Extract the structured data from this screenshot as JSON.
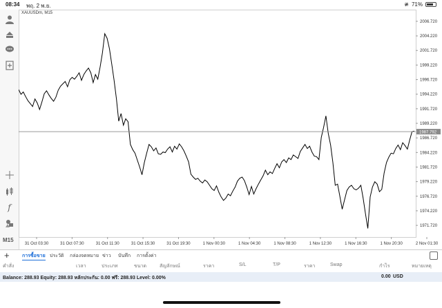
{
  "statusbar": {
    "time": "08:34",
    "date": "พฤ. 2 พ.ย.",
    "battery": "71%"
  },
  "sidebar": {
    "icons": [
      "user-icon",
      "trade-icon",
      "chat-icon",
      "new-order-icon",
      "crosshair-icon",
      "chart-type-icon",
      "indicator-icon",
      "objects-icon"
    ],
    "timeframe": "M15"
  },
  "chart": {
    "symbol": "XAUUSDm, M15",
    "current_price_label": "1987.792",
    "line_color": "#000000",
    "price_line_color": "#8a8a8a"
  },
  "chart_data": {
    "type": "line",
    "y_ticks": [
      "2006.720",
      "2004.220",
      "2001.720",
      "1999.220",
      "1996.720",
      "1994.220",
      "1991.720",
      "1989.220",
      "1986.720",
      "1984.220",
      "1981.720",
      "1979.220",
      "1976.720",
      "1974.220",
      "1971.720"
    ],
    "x_ticks": [
      "31 Oct 03:30",
      "31 Oct 07:30",
      "31 Oct 11:30",
      "31 Oct 15:30",
      "31 Oct 19:30",
      "1 Nov 00:30",
      "1 Nov 04:30",
      "1 Nov 08:30",
      "1 Nov 12:30",
      "1 Nov 16:30",
      "1 Nov 20:30",
      "2 Nov 01:30"
    ],
    "ylim": [
      1969.72,
      2008.72
    ],
    "current_price": 1987.792,
    "values": [
      1995.0,
      1994.2,
      1994.6,
      1993.8,
      1993.1,
      1992.6,
      1992.1,
      1993.4,
      1992.7,
      1991.6,
      1992.9,
      1994.3,
      1994.8,
      1994.1,
      1993.5,
      1993.0,
      1993.7,
      1994.9,
      1995.6,
      1996.0,
      1996.4,
      1995.5,
      1996.7,
      1997.1,
      1996.8,
      1997.3,
      1997.9,
      1996.6,
      1997.6,
      1998.2,
      1998.7,
      1997.9,
      1996.2,
      1997.6,
      1996.8,
      1998.9,
      2001.3,
      2004.6,
      2003.8,
      2002.0,
      1999.4,
      1996.6,
      1993.4,
      1989.6,
      1990.9,
      1988.9,
      1990.0,
      1989.5,
      1985.6,
      1984.7,
      1984.1,
      1982.9,
      1981.7,
      1980.4,
      1982.5,
      1984.1,
      1985.6,
      1985.2,
      1984.5,
      1985.0,
      1984.0,
      1983.9,
      1984.3,
      1984.2,
      1984.8,
      1985.2,
      1984.3,
      1985.3,
      1984.8,
      1985.7,
      1985.2,
      1984.5,
      1983.6,
      1982.6,
      1980.5,
      1980.0,
      1979.6,
      1979.8,
      1979.3,
      1979.0,
      1979.5,
      1979.2,
      1978.6,
      1978.0,
      1977.7,
      1978.5,
      1977.4,
      1976.6,
      1976.0,
      1976.4,
      1977.1,
      1976.8,
      1977.6,
      1978.3,
      1979.3,
      1979.8,
      1980.0,
      1979.4,
      1978.3,
      1977.0,
      1978.4,
      1977.1,
      1978.0,
      1978.8,
      1979.5,
      1980.2,
      1981.2,
      1980.4,
      1980.9,
      1980.6,
      1981.5,
      1982.3,
      1981.6,
      1982.6,
      1983.0,
      1982.5,
      1983.3,
      1983.0,
      1983.8,
      1983.5,
      1983.2,
      1984.4,
      1985.0,
      1985.6,
      1984.9,
      1985.3,
      1984.3,
      1983.6,
      1983.5,
      1983.0,
      1986.8,
      1988.5,
      1990.5,
      1987.5,
      1985.5,
      1982.5,
      1978.6,
      1978.8,
      1976.7,
      1974.5,
      1976.1,
      1977.7,
      1978.3,
      1978.6,
      1978.0,
      1977.8,
      1978.1,
      1978.6,
      1976.4,
      1973.7,
      1971.2,
      1976.6,
      1978.3,
      1979.2,
      1978.8,
      1977.5,
      1977.9,
      1980.7,
      1982.5,
      1983.4,
      1984.1,
      1984.0,
      1984.9,
      1985.5,
      1984.7,
      1985.9,
      1985.4,
      1984.8,
      1986.4,
      1987.8,
      1987.9
    ]
  },
  "tabs": {
    "items": [
      "การซื้อขาย",
      "ประวัติ",
      "กล่องจดหมาย",
      "ข่าว",
      "บันทึก",
      "การตั้งค่า"
    ],
    "active": 0
  },
  "table": {
    "headers": [
      "คำสั่ง",
      "เวลา",
      "ประเภท",
      "ขนาด",
      "สัญลักษณ์",
      "ราคา",
      "S/L",
      "T/P",
      "ราคา",
      "Swap",
      "กำไร",
      "หมายเหตุ"
    ]
  },
  "balance": {
    "text": "Balance: 288.93 Equity: 288.93 หลักประกัน: 0.00 ฟรี: 288.93 Level: 0.00%",
    "amount": "0.00",
    "currency": "USD"
  }
}
